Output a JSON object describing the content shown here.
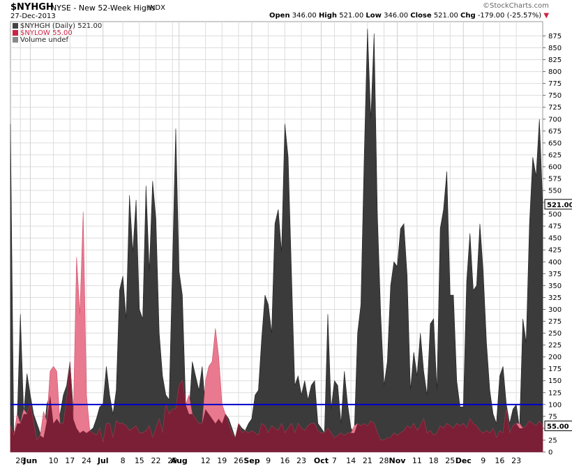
{
  "header": {
    "symbol": "$NYHGH",
    "description": "NYSE - New 52-Week Highs",
    "exchange": "INDX",
    "date": "27-Dec-2013",
    "brand": "©StockCharts.com",
    "open_label": "Open",
    "open_value": "346.00",
    "high_label": "High",
    "high_value": "521.00",
    "low_label": "Low",
    "low_value": "346.00",
    "close_label": "Close",
    "close_value": "521.00",
    "chg_label": "Chg",
    "chg_value": "-179.00 (-25.57%)"
  },
  "legend": [
    {
      "label": "$NYHGH (Daily) 521.00",
      "color": "#444444"
    },
    {
      "label": "$NYLOW  55.00",
      "color": "#cc2244"
    },
    {
      "label": "Volume undef",
      "color": "#888888"
    }
  ],
  "colors": {
    "highs_fill": "#3b3b3b",
    "lows_fill": "#e8798e",
    "overlap_fill": "#7a1f35",
    "refline": "#0000cc",
    "grid": "#dddddd",
    "label_box_border": "#000000"
  },
  "chart_data": {
    "type": "area",
    "title": "$NYHGH NYSE - New 52-Week Highs",
    "ylim": [
      0,
      905
    ],
    "yticks": [
      0,
      25,
      50,
      75,
      100,
      125,
      150,
      175,
      200,
      225,
      250,
      275,
      300,
      325,
      350,
      375,
      400,
      425,
      450,
      475,
      500,
      525,
      550,
      575,
      600,
      625,
      650,
      675,
      700,
      725,
      750,
      775,
      800,
      825,
      850,
      875
    ],
    "reference_line": 100,
    "last_labels": [
      "521.00",
      "55.00"
    ],
    "xticks": [
      {
        "label": "28",
        "i": 3
      },
      {
        "label": "Jun",
        "i": 6,
        "bold": true
      },
      {
        "label": "10",
        "i": 13
      },
      {
        "label": "17",
        "i": 18
      },
      {
        "label": "24",
        "i": 23
      },
      {
        "label": "Jul",
        "i": 28,
        "bold": true
      },
      {
        "label": "8",
        "i": 34
      },
      {
        "label": "15",
        "i": 39
      },
      {
        "label": "22",
        "i": 44
      },
      {
        "label": "29",
        "i": 49
      },
      {
        "label": "Aug",
        "i": 51,
        "bold": true
      },
      {
        "label": "12",
        "i": 59
      },
      {
        "label": "19",
        "i": 64
      },
      {
        "label": "26",
        "i": 69
      },
      {
        "label": "Sep",
        "i": 73,
        "bold": true
      },
      {
        "label": "9",
        "i": 78
      },
      {
        "label": "16",
        "i": 83
      },
      {
        "label": "23",
        "i": 88
      },
      {
        "label": "Oct",
        "i": 94,
        "bold": true
      },
      {
        "label": "7",
        "i": 98
      },
      {
        "label": "14",
        "i": 103
      },
      {
        "label": "21",
        "i": 108
      },
      {
        "label": "28",
        "i": 113
      },
      {
        "label": "Nov",
        "i": 117,
        "bold": true
      },
      {
        "label": "11",
        "i": 123
      },
      {
        "label": "18",
        "i": 128
      },
      {
        "label": "25",
        "i": 133
      },
      {
        "label": "Dec",
        "i": 137,
        "bold": true
      },
      {
        "label": "9",
        "i": 143
      },
      {
        "label": "16",
        "i": 148
      },
      {
        "label": "23",
        "i": 153
      }
    ],
    "series": [
      {
        "name": "$NYHGH",
        "values": [
          690,
          40,
          60,
          290,
          80,
          165,
          120,
          80,
          60,
          40,
          30,
          100,
          120,
          60,
          70,
          80,
          120,
          140,
          190,
          90,
          50,
          40,
          45,
          40,
          45,
          50,
          70,
          95,
          100,
          180,
          120,
          80,
          130,
          340,
          370,
          280,
          540,
          420,
          530,
          300,
          280,
          560,
          380,
          570,
          490,
          250,
          160,
          120,
          110,
          390,
          680,
          380,
          330,
          100,
          80,
          190,
          160,
          130,
          180,
          90,
          80,
          70,
          60,
          70,
          60,
          80,
          70,
          50,
          30,
          60,
          50,
          45,
          60,
          70,
          120,
          130,
          240,
          330,
          310,
          250,
          480,
          510,
          420,
          690,
          620,
          380,
          140,
          160,
          120,
          150,
          110,
          140,
          150,
          60,
          50,
          40,
          290,
          90,
          150,
          140,
          60,
          170,
          100,
          50,
          40,
          250,
          310,
          620,
          890,
          700,
          880,
          500,
          290,
          140,
          190,
          350,
          400,
          390,
          470,
          480,
          370,
          130,
          210,
          160,
          250,
          170,
          120,
          270,
          280,
          130,
          470,
          510,
          590,
          330,
          330,
          150,
          95,
          95,
          360,
          460,
          340,
          350,
          480,
          380,
          230,
          130,
          80,
          60,
          160,
          180,
          100,
          60,
          90,
          100,
          50,
          280,
          230,
          480,
          620,
          580,
          700,
          521
        ],
        "color": "#3b3b3b"
      },
      {
        "name": "$NYLOW",
        "values": [
          55,
          35,
          80,
          60,
          90,
          80,
          100,
          60,
          25,
          35,
          85,
          65,
          170,
          180,
          170,
          60,
          60,
          110,
          190,
          70,
          410,
          290,
          505,
          120,
          45,
          40,
          35,
          50,
          20,
          60,
          60,
          30,
          65,
          60,
          60,
          55,
          45,
          50,
          55,
          40,
          40,
          45,
          55,
          30,
          50,
          70,
          40,
          100,
          80,
          90,
          90,
          140,
          150,
          100,
          120,
          80,
          70,
          60,
          60,
          150,
          180,
          190,
          260,
          200,
          100,
          80,
          60,
          40,
          30,
          60,
          40,
          45,
          40,
          45,
          40,
          35,
          60,
          55,
          40,
          55,
          50,
          45,
          60,
          40,
          50,
          60,
          40,
          60,
          50,
          45,
          55,
          60,
          60,
          45,
          40,
          40,
          50,
          40,
          30,
          35,
          40,
          35,
          40,
          40,
          55,
          60,
          55,
          60,
          55,
          65,
          60,
          40,
          25,
          25,
          30,
          30,
          40,
          35,
          40,
          45,
          55,
          50,
          60,
          45,
          55,
          70,
          40,
          45,
          35,
          40,
          55,
          50,
          60,
          55,
          50,
          60,
          55,
          60,
          50,
          70,
          60,
          55,
          45,
          40,
          45,
          40,
          50,
          30,
          45,
          40,
          90,
          40,
          55,
          60,
          60,
          50,
          55,
          65,
          60,
          55,
          65,
          55
        ],
        "color": "#e8798e"
      }
    ]
  }
}
